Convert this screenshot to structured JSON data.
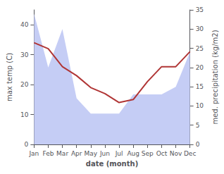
{
  "chart_data": {
    "type": "line",
    "xlabel": "date (month)",
    "ylabel": "max temp (C)",
    "y2label": "med. precipitation (kg/m2)",
    "categories": [
      "Jan",
      "Feb",
      "Mar",
      "Apr",
      "May",
      "Jun",
      "Jul",
      "Aug",
      "Sep",
      "Oct",
      "Nov",
      "Dec"
    ],
    "series": [
      {
        "type": "area",
        "axis": "y2",
        "color": "#c5cdf5",
        "values": [
          34,
          20,
          30,
          12,
          8,
          8,
          8,
          13,
          13,
          13,
          15,
          24
        ]
      },
      {
        "type": "line",
        "axis": "y",
        "color": "#b03535",
        "values": [
          34,
          32,
          26,
          23,
          19,
          17,
          14,
          15,
          21,
          26,
          26,
          31
        ]
      }
    ],
    "ylim": [
      0,
      45
    ],
    "yticks": [
      0,
      10,
      20,
      30,
      40
    ],
    "y2lim": [
      0,
      35
    ],
    "y2ticks": [
      0,
      5,
      10,
      15,
      20,
      25,
      30,
      35
    ],
    "grid": false
  }
}
